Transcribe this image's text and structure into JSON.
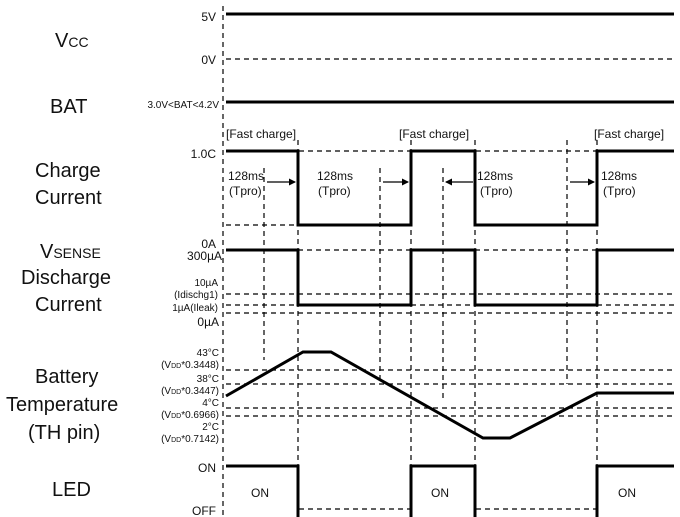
{
  "signals": {
    "vcc": {
      "main": "V",
      "sub": "CC"
    },
    "bat": "BAT",
    "charge_current": [
      "Charge",
      "Current"
    ],
    "vsense": {
      "main": "V",
      "sub": "SENSE"
    },
    "discharge_current": [
      "Discharge",
      "Current"
    ],
    "battery_temperature": [
      "Battery",
      "Temperature",
      "(TH pin)"
    ],
    "led": "LED"
  },
  "levels": {
    "vcc_high": "5V",
    "vcc_low": "0V",
    "bat_range": "3.0V<BAT<4.2V",
    "charge_1c": "1.0C",
    "charge_0a": "0A",
    "disch_300ua": "300µA",
    "disch_10ua": [
      "10µA",
      "(Idischg1)"
    ],
    "disch_1ua": "1µA(Ileak)",
    "disch_0ua": "0µA",
    "temp_43": [
      "43°C",
      "(V",
      "DD",
      "*0.3448)"
    ],
    "temp_38": [
      "38°C",
      "(V",
      "DD",
      "*0.3447)"
    ],
    "temp_4": [
      "4°C",
      "(V",
      "DD",
      "*0.6966)"
    ],
    "temp_2": [
      "2°C",
      "(V",
      "DD",
      "*0.7142)"
    ],
    "led_on": "ON",
    "led_off": "OFF"
  },
  "annotations": {
    "fast_charge": "[Fast charge]",
    "delay_time": "128ms",
    "delay_name": "(Tpro)",
    "led_state_on": "ON"
  }
}
